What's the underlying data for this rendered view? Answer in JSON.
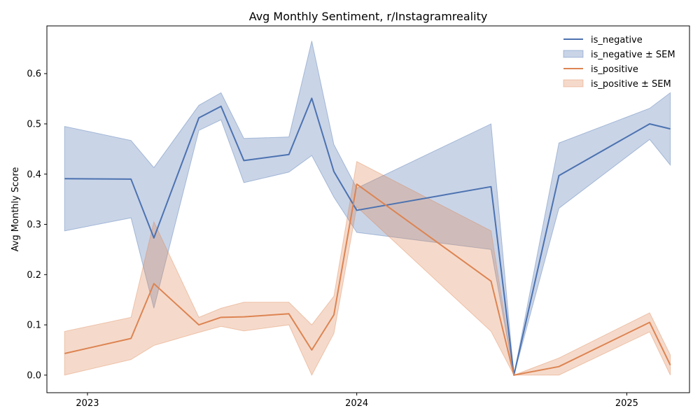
{
  "chart_data": {
    "type": "line",
    "title": "Avg Monthly Sentiment, r/Instagramreality",
    "xlabel": "",
    "ylabel": "Avg Monthly Score",
    "x_ticks": [
      "2023",
      "2024",
      "2025"
    ],
    "x_tick_dates": [
      "2023-01-01",
      "2024-01-01",
      "2025-01-01"
    ],
    "xlim": [
      "2022-11-07",
      "2025-03-27"
    ],
    "ylim": [
      -0.035,
      0.695
    ],
    "y_ticks": [
      0.0,
      0.1,
      0.2,
      0.3,
      0.4,
      0.5,
      0.6
    ],
    "y_tick_labels": [
      "0.0",
      "0.1",
      "0.2",
      "0.3",
      "0.4",
      "0.5",
      "0.6"
    ],
    "legend_placement": "top-right",
    "grid": false,
    "x": [
      "2022-12-01",
      "2023-03-01",
      "2023-04-01",
      "2023-06-01",
      "2023-07-01",
      "2023-08-01",
      "2023-10-01",
      "2023-11-01",
      "2023-12-01",
      "2024-01-01",
      "2024-07-01",
      "2024-08-01",
      "2024-10-01",
      "2025-02-01",
      "2025-03-01"
    ],
    "series": [
      {
        "name": "is_negative",
        "band_name": "is_negative ± SEM",
        "color": "#4c72b0",
        "values": [
          0.391,
          0.39,
          0.273,
          0.512,
          0.535,
          0.427,
          0.439,
          0.551,
          0.405,
          0.328,
          0.375,
          0.0,
          0.397,
          0.5,
          0.49
        ],
        "lower": [
          0.287,
          0.313,
          0.133,
          0.487,
          0.508,
          0.383,
          0.404,
          0.437,
          0.354,
          0.284,
          0.25,
          0.0,
          0.332,
          0.469,
          0.418
        ],
        "upper": [
          0.495,
          0.467,
          0.413,
          0.537,
          0.562,
          0.471,
          0.474,
          0.665,
          0.459,
          0.372,
          0.5,
          0.0,
          0.462,
          0.531,
          0.562
        ]
      },
      {
        "name": "is_positive",
        "band_name": "is_positive ± SEM",
        "color": "#dd8452",
        "values": [
          0.043,
          0.073,
          0.182,
          0.1,
          0.115,
          0.116,
          0.122,
          0.05,
          0.12,
          0.38,
          0.187,
          0.0,
          0.017,
          0.105,
          0.02
        ],
        "lower": [
          0.0,
          0.031,
          0.059,
          0.085,
          0.097,
          0.088,
          0.1,
          0.0,
          0.083,
          0.335,
          0.087,
          0.0,
          0.0,
          0.086,
          0.0
        ],
        "upper": [
          0.087,
          0.115,
          0.305,
          0.115,
          0.133,
          0.145,
          0.145,
          0.1,
          0.157,
          0.425,
          0.287,
          0.0,
          0.034,
          0.124,
          0.04
        ]
      }
    ]
  }
}
